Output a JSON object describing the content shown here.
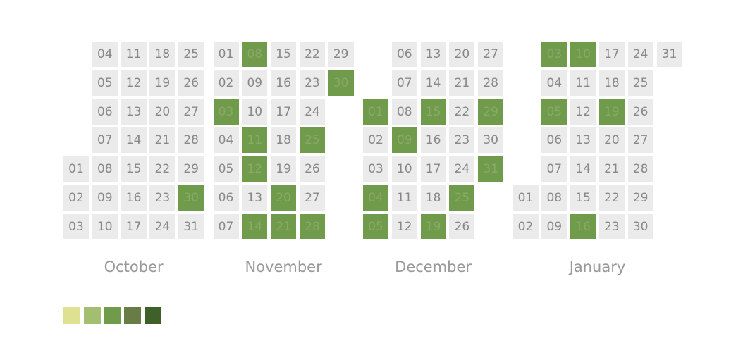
{
  "chart_data": {
    "type": "heatmap",
    "legend_placement": "bottom-left",
    "empty_color": "#ebebeb",
    "level_colors": [
      "#dde191",
      "#a3bd71",
      "#709b4a",
      "#687c45",
      "#40602a"
    ],
    "months": [
      {
        "name": "October",
        "first_weekday": 4,
        "days": 31,
        "active_days": [
          30
        ]
      },
      {
        "name": "November",
        "first_weekday": 0,
        "days": 30,
        "active_days": [
          3,
          8,
          11,
          12,
          14,
          20,
          21,
          25,
          28,
          30
        ]
      },
      {
        "name": "December",
        "first_weekday": 2,
        "days": 31,
        "active_days": [
          1,
          4,
          5,
          9,
          15,
          19,
          25,
          29,
          31
        ]
      },
      {
        "name": "January",
        "first_weekday": 5,
        "days": 31,
        "active_days": [
          3,
          5,
          10,
          16,
          19
        ]
      }
    ]
  }
}
